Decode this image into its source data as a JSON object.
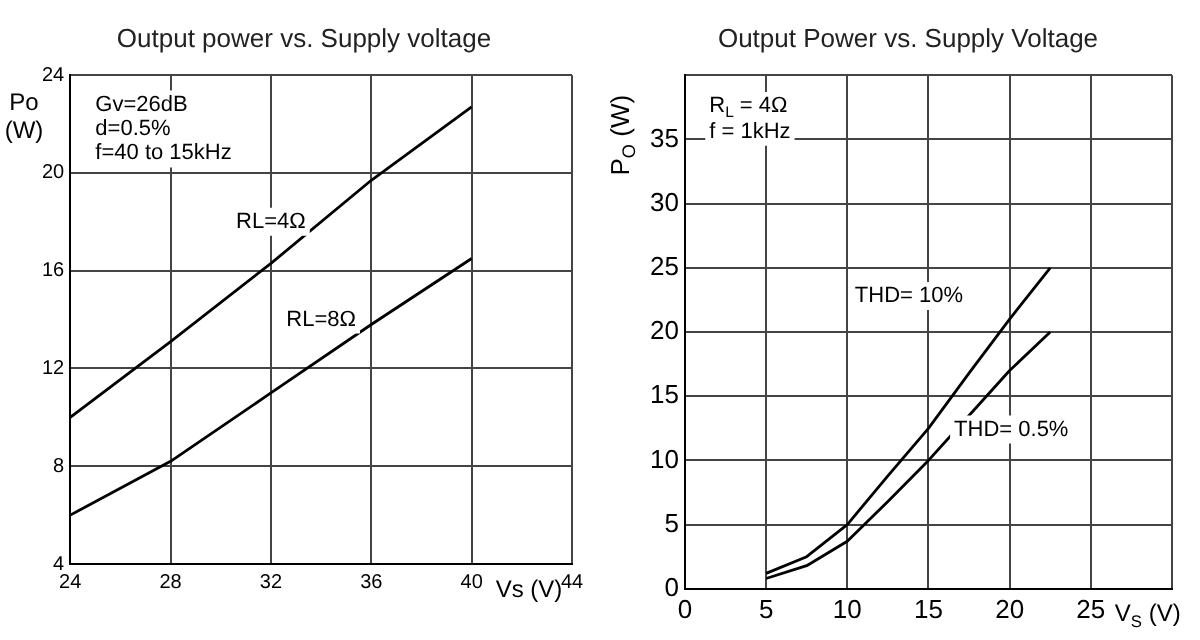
{
  "chart_data": [
    {
      "type": "line",
      "title": "Output power vs. Supply voltage",
      "xlabel": "Vs (V)",
      "ylabel": "Po (W)",
      "xlim": [
        24,
        44
      ],
      "xticks": [
        24,
        28,
        32,
        36,
        40,
        44
      ],
      "ylim": [
        4,
        24
      ],
      "yticks": [
        4,
        8,
        12,
        16,
        20,
        24
      ],
      "grid": true,
      "legend": false,
      "marker": "none",
      "line_style": "solid",
      "annotations": [
        "Gv=26dB",
        "d=0.5%",
        "f=40 to 15kHz",
        {
          "text": "RL=4Ω",
          "x": 32,
          "y": 18
        },
        {
          "text": "RL=8Ω",
          "x": 34,
          "y": 14
        }
      ],
      "series": [
        {
          "color": "#000000",
          "x": [
            24,
            28,
            32,
            36,
            40
          ],
          "values": [
            10,
            13.1,
            16.3,
            19.7,
            22.7
          ]
        },
        {
          "color": "#000000",
          "x": [
            24,
            28,
            32,
            36,
            40
          ],
          "values": [
            6,
            8.2,
            11,
            13.8,
            16.5
          ]
        }
      ]
    },
    {
      "type": "line",
      "title": "Output Power vs. Supply Voltage",
      "xlabel": "V$_{S}$ (V)",
      "ylabel": "P$_{O}$ (W)",
      "xlim": [
        0,
        30
      ],
      "xticks": [
        0,
        5,
        10,
        15,
        20,
        25,
        {
          "value": 30,
          "label": null
        }
      ],
      "ylim": [
        0,
        40
      ],
      "yticks": [
        0,
        5,
        10,
        15,
        20,
        25,
        30,
        35,
        {
          "value": 40,
          "label": null
        }
      ],
      "grid": true,
      "legend": false,
      "marker": "none",
      "line_style": "solid",
      "annotations": [
        "R$_{L}$ = 4Ω",
        "f = 1kHz",
        "THD= 10%",
        "THD= 0.5%"
      ],
      "series": [
        {
          "color": "#000000",
          "x": [
            5,
            7.5,
            10,
            12.5,
            15,
            17.5,
            20,
            22.5
          ],
          "values": [
            1.2,
            2.5,
            5,
            8.8,
            12.5,
            16.8,
            21,
            25
          ]
        },
        {
          "color": "#000000",
          "x": [
            5,
            7.5,
            10,
            12.5,
            15,
            17.5,
            20,
            22.5
          ],
          "values": [
            0.8,
            1.8,
            3.7,
            6.8,
            10,
            13.5,
            17,
            20
          ]
        }
      ]
    }
  ]
}
